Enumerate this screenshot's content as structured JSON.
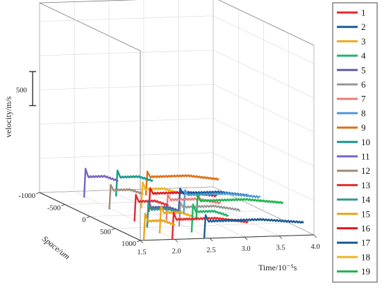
{
  "chart_data": {
    "type": "line",
    "xlabel": "Time/10⁻⁵s",
    "ylabel": "Space/um",
    "zlabel": "velocity/m/s",
    "x_ticks": [
      "1.5",
      "2.0",
      "2.5",
      "3.0",
      "3.5",
      "4.0"
    ],
    "y_ticks": [
      "-1000",
      "-500",
      "0",
      "500",
      "1000"
    ],
    "scale_bar_label": "500",
    "scale_bar_value": 500,
    "grid": true,
    "legend_position": "right",
    "series": [
      {
        "name": "1",
        "color": "#e8262b",
        "space": 1000,
        "t_start": 1.96,
        "peak": 390,
        "plateau": 290,
        "t_end": 3.05
      },
      {
        "name": "2",
        "color": "#1c5a96",
        "space": 1000,
        "t_start": 2.42,
        "peak": 340,
        "plateau": 250,
        "t_end": 3.85
      },
      {
        "name": "3",
        "color": "#efaa1c",
        "space": 750,
        "t_start": 1.96,
        "peak": 400,
        "plateau": 300,
        "t_end": 2.45
      },
      {
        "name": "4",
        "color": "#22b46a",
        "space": 750,
        "t_start": 2.42,
        "peak": 410,
        "plateau": 300,
        "t_end": 2.95
      },
      {
        "name": "5",
        "color": "#605aa6",
        "space": 500,
        "t_start": 1.96,
        "peak": 390,
        "plateau": 290,
        "t_end": 2.45
      },
      {
        "name": "6",
        "color": "#999999",
        "space": 500,
        "t_start": 2.42,
        "peak": 350,
        "plateau": 280,
        "t_end": 3.3
      },
      {
        "name": "7",
        "color": "#ef7b7b",
        "space": 250,
        "t_start": 2.42,
        "peak": 380,
        "plateau": 300,
        "t_end": 3.2
      },
      {
        "name": "8",
        "color": "#4b9ad6",
        "space": 0,
        "t_start": 2.85,
        "peak": 340,
        "plateau": 270,
        "t_end": 3.95
      },
      {
        "name": "9",
        "color": "#de7016",
        "space": -750,
        "t_start": 2.85,
        "peak": 350,
        "plateau": 270,
        "t_end": 3.9
      },
      {
        "name": "10",
        "color": "#169a8c",
        "space": -750,
        "t_start": 2.42,
        "peak": 380,
        "plateau": 280,
        "t_end": 2.95
      },
      {
        "name": "11",
        "color": "#7a62bf",
        "space": -750,
        "t_start": 1.96,
        "peak": 420,
        "plateau": 300,
        "t_end": 2.45
      },
      {
        "name": "12",
        "color": "#a18b78",
        "space": -250,
        "t_start": 1.96,
        "peak": 360,
        "plateau": 280,
        "t_end": 2.45
      },
      {
        "name": "13",
        "color": "#e02a2f",
        "space": 250,
        "t_start": 1.96,
        "peak": 390,
        "plateau": 290,
        "t_end": 2.45
      },
      {
        "name": "14",
        "color": "#33988a",
        "space": 500,
        "t_start": 1.96,
        "peak": 350,
        "plateau": 260,
        "t_end": 2.45
      },
      {
        "name": "15",
        "color": "#e9a21a",
        "space": 1000,
        "t_start": 1.55,
        "peak": 390,
        "plateau": 280,
        "t_end": 2.0
      },
      {
        "name": "16",
        "color": "#e3181b",
        "space": -100,
        "t_start": 2.42,
        "peak": 350,
        "plateau": 270,
        "t_end": 3.4
      },
      {
        "name": "17",
        "color": "#165a99",
        "space": -100,
        "t_start": 2.85,
        "peak": 330,
        "plateau": 260,
        "t_end": 3.85
      },
      {
        "name": "18",
        "color": "#f1b51d",
        "space": -250,
        "t_start": 2.42,
        "peak": 380,
        "plateau": 280,
        "t_end": 2.95
      },
      {
        "name": "19",
        "color": "#21b34f",
        "space": 250,
        "t_start": 2.85,
        "peak": 370,
        "plateau": 270,
        "t_end": 4.1
      }
    ]
  }
}
